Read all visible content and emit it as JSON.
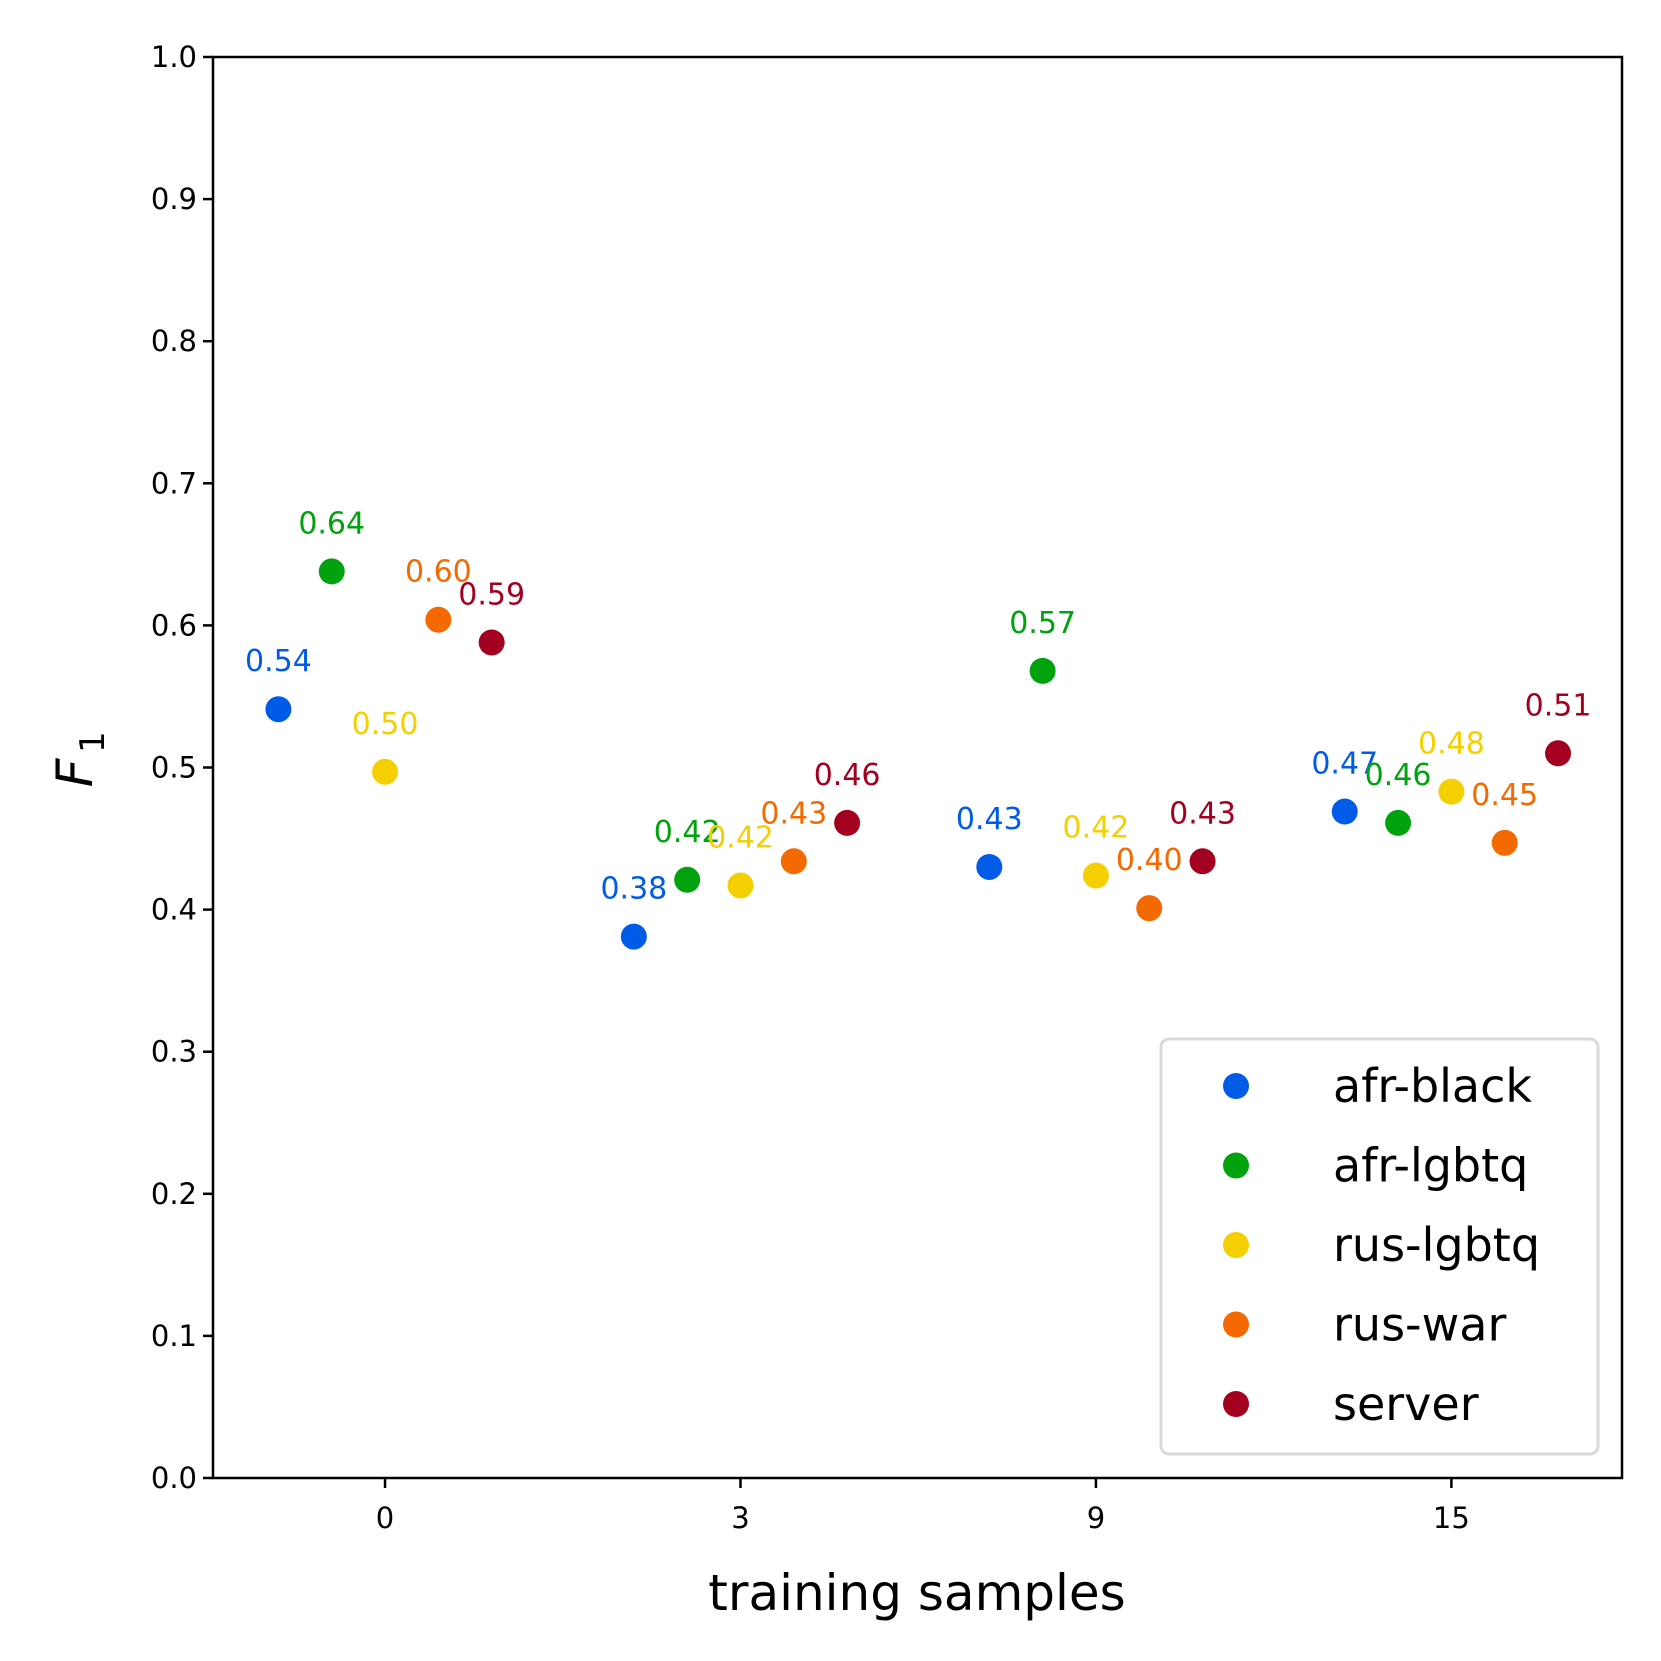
{
  "chart_data": {
    "type": "scatter",
    "title": "",
    "xlabel": "training samples",
    "ylabel": "F",
    "ylabel_subscript": "1",
    "x_categories": [
      "0",
      "3",
      "9",
      "15"
    ],
    "xlim": [
      -0.484,
      3.48
    ],
    "ylim": [
      0.0,
      1.0
    ],
    "y_ticks": [
      "0.0",
      "0.1",
      "0.2",
      "0.3",
      "0.4",
      "0.5",
      "0.6",
      "0.7",
      "0.8",
      "0.9",
      "1.0"
    ],
    "grid": false,
    "legend_position": "lower-right",
    "series": [
      {
        "name": "afr-black",
        "color": "#005ce6",
        "offset": -0.3,
        "values": [
          0.541,
          0.381,
          0.43,
          0.469
        ],
        "labels": [
          "0.54",
          "0.38",
          "0.43",
          "0.47"
        ]
      },
      {
        "name": "afr-lgbtq",
        "color": "#00a30d",
        "offset": -0.15,
        "values": [
          0.638,
          0.421,
          0.568,
          0.461
        ],
        "labels": [
          "0.64",
          "0.42",
          "0.57",
          "0.46"
        ]
      },
      {
        "name": "rus-lgbtq",
        "color": "#f5d000",
        "offset": 0.0,
        "values": [
          0.497,
          0.417,
          0.424,
          0.483
        ],
        "labels": [
          "0.50",
          "0.42",
          "0.42",
          "0.48"
        ]
      },
      {
        "name": "rus-war",
        "color": "#f56a00",
        "offset": 0.15,
        "values": [
          0.604,
          0.434,
          0.401,
          0.447
        ],
        "labels": [
          "0.60",
          "0.43",
          "0.40",
          "0.45"
        ]
      },
      {
        "name": "server",
        "color": "#a30020",
        "offset": 0.3,
        "values": [
          0.588,
          0.461,
          0.434,
          0.51
        ],
        "labels": [
          "0.59",
          "0.46",
          "0.43",
          "0.51"
        ]
      }
    ]
  }
}
